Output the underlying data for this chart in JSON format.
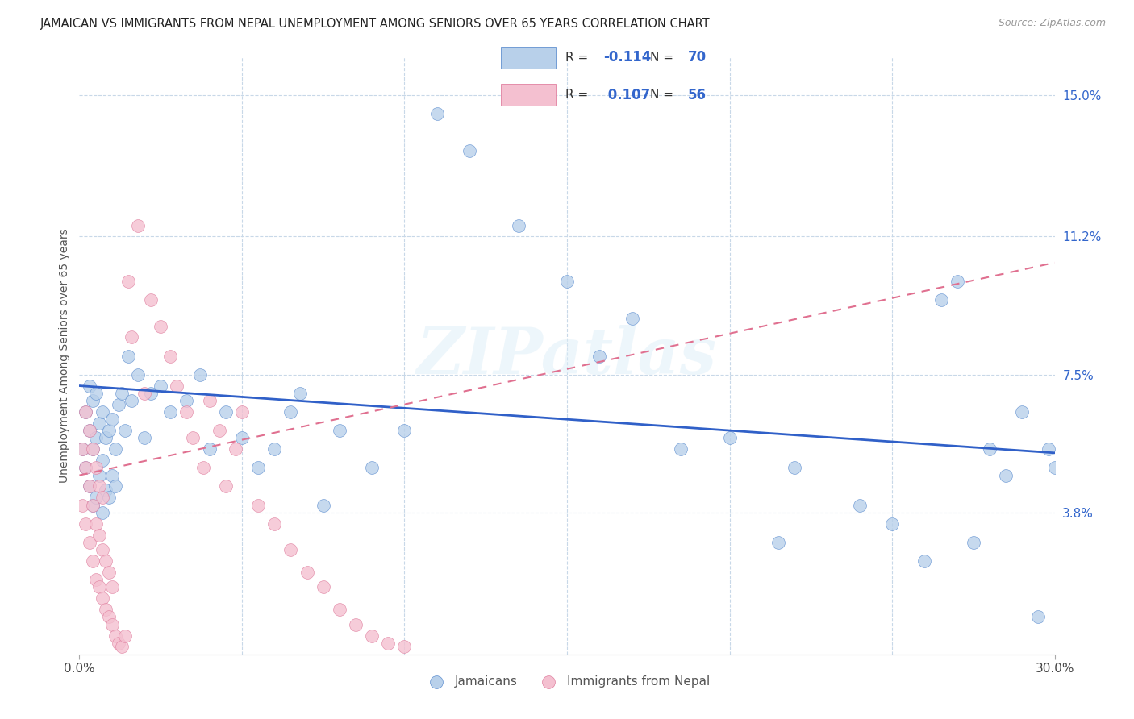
{
  "title": "JAMAICAN VS IMMIGRANTS FROM NEPAL UNEMPLOYMENT AMONG SENIORS OVER 65 YEARS CORRELATION CHART",
  "source": "Source: ZipAtlas.com",
  "ylabel": "Unemployment Among Seniors over 65 years",
  "xmin": 0.0,
  "xmax": 0.3,
  "ymin": 0.0,
  "ymax": 0.16,
  "yticks": [
    0.038,
    0.075,
    0.112,
    0.15
  ],
  "ytick_labels": [
    "3.8%",
    "7.5%",
    "11.2%",
    "15.0%"
  ],
  "color_blue": "#b8d0ea",
  "color_pink": "#f4c0d0",
  "edge_blue": "#6090d0",
  "edge_pink": "#e080a0",
  "line_blue_color": "#3060c8",
  "line_pink_color": "#e07090",
  "watermark": "ZIPatlas",
  "blue_x": [
    0.001,
    0.002,
    0.002,
    0.003,
    0.003,
    0.003,
    0.004,
    0.004,
    0.004,
    0.005,
    0.005,
    0.005,
    0.006,
    0.006,
    0.007,
    0.007,
    0.007,
    0.008,
    0.008,
    0.009,
    0.009,
    0.01,
    0.01,
    0.011,
    0.011,
    0.012,
    0.013,
    0.014,
    0.015,
    0.016,
    0.018,
    0.02,
    0.022,
    0.025,
    0.028,
    0.033,
    0.037,
    0.04,
    0.045,
    0.05,
    0.055,
    0.06,
    0.065,
    0.068,
    0.075,
    0.08,
    0.09,
    0.1,
    0.11,
    0.12,
    0.135,
    0.15,
    0.16,
    0.17,
    0.185,
    0.2,
    0.215,
    0.22,
    0.24,
    0.25,
    0.26,
    0.265,
    0.27,
    0.275,
    0.28,
    0.285,
    0.29,
    0.295,
    0.298,
    0.3
  ],
  "blue_y": [
    0.055,
    0.05,
    0.065,
    0.045,
    0.06,
    0.072,
    0.04,
    0.055,
    0.068,
    0.042,
    0.058,
    0.07,
    0.048,
    0.062,
    0.038,
    0.052,
    0.065,
    0.044,
    0.058,
    0.042,
    0.06,
    0.048,
    0.063,
    0.045,
    0.055,
    0.067,
    0.07,
    0.06,
    0.08,
    0.068,
    0.075,
    0.058,
    0.07,
    0.072,
    0.065,
    0.068,
    0.075,
    0.055,
    0.065,
    0.058,
    0.05,
    0.055,
    0.065,
    0.07,
    0.04,
    0.06,
    0.05,
    0.06,
    0.145,
    0.135,
    0.115,
    0.1,
    0.08,
    0.09,
    0.055,
    0.058,
    0.03,
    0.05,
    0.04,
    0.035,
    0.025,
    0.095,
    0.1,
    0.03,
    0.055,
    0.048,
    0.065,
    0.01,
    0.055,
    0.05
  ],
  "pink_x": [
    0.001,
    0.001,
    0.002,
    0.002,
    0.002,
    0.003,
    0.003,
    0.003,
    0.004,
    0.004,
    0.004,
    0.005,
    0.005,
    0.005,
    0.006,
    0.006,
    0.006,
    0.007,
    0.007,
    0.007,
    0.008,
    0.008,
    0.009,
    0.009,
    0.01,
    0.01,
    0.011,
    0.012,
    0.013,
    0.014,
    0.015,
    0.016,
    0.018,
    0.02,
    0.022,
    0.025,
    0.028,
    0.03,
    0.033,
    0.035,
    0.038,
    0.04,
    0.043,
    0.045,
    0.048,
    0.05,
    0.055,
    0.06,
    0.065,
    0.07,
    0.075,
    0.08,
    0.085,
    0.09,
    0.095,
    0.1
  ],
  "pink_y": [
    0.04,
    0.055,
    0.035,
    0.05,
    0.065,
    0.03,
    0.045,
    0.06,
    0.025,
    0.04,
    0.055,
    0.02,
    0.035,
    0.05,
    0.018,
    0.032,
    0.045,
    0.015,
    0.028,
    0.042,
    0.012,
    0.025,
    0.01,
    0.022,
    0.008,
    0.018,
    0.005,
    0.003,
    0.002,
    0.005,
    0.1,
    0.085,
    0.115,
    0.07,
    0.095,
    0.088,
    0.08,
    0.072,
    0.065,
    0.058,
    0.05,
    0.068,
    0.06,
    0.045,
    0.055,
    0.065,
    0.04,
    0.035,
    0.028,
    0.022,
    0.018,
    0.012,
    0.008,
    0.005,
    0.003,
    0.002
  ],
  "blue_line_x0": 0.0,
  "blue_line_y0": 0.072,
  "blue_line_x1": 0.3,
  "blue_line_y1": 0.054,
  "pink_line_x0": 0.0,
  "pink_line_y0": 0.048,
  "pink_line_x1": 0.3,
  "pink_line_y1": 0.105
}
